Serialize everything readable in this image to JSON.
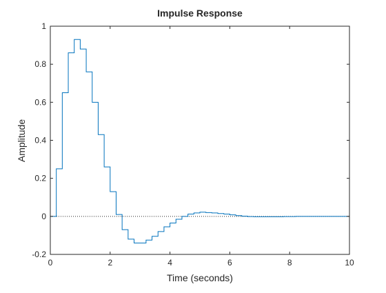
{
  "chart_data": {
    "type": "line",
    "style": "stairs",
    "title": "Impulse Response",
    "xlabel": "Time (seconds)",
    "ylabel": "Amplitude",
    "xlim": [
      0,
      10
    ],
    "ylim": [
      -0.2,
      1
    ],
    "xticks": [
      0,
      2,
      4,
      6,
      8,
      10
    ],
    "yticks": [
      -0.2,
      0,
      0.2,
      0.4,
      0.6,
      0.8,
      1
    ],
    "xtick_labels": [
      "0",
      "2",
      "4",
      "6",
      "8",
      "10"
    ],
    "ytick_labels": [
      "-0.2",
      "0",
      "0.2",
      "0.4",
      "0.6",
      "0.8",
      "1"
    ],
    "zero_line": true,
    "grid": false,
    "series": [
      {
        "color": "#0072bd",
        "x": [
          0,
          0.2,
          0.4,
          0.6,
          0.8,
          1.0,
          1.2,
          1.4,
          1.6,
          1.8,
          2.0,
          2.2,
          2.4,
          2.6,
          2.8,
          3.0,
          3.2,
          3.4,
          3.6,
          3.8,
          4.0,
          4.2,
          4.4,
          4.6,
          4.8,
          5.0,
          5.2,
          5.4,
          5.6,
          5.8,
          6.0,
          6.2,
          6.4,
          6.6,
          6.8,
          7.0,
          7.2,
          7.4,
          7.6,
          7.8,
          8.0,
          8.2,
          8.4,
          8.6,
          8.8,
          9.0,
          9.2,
          9.4,
          9.6,
          9.8
        ],
        "y": [
          0,
          0.25,
          0.65,
          0.86,
          0.93,
          0.88,
          0.76,
          0.6,
          0.43,
          0.26,
          0.13,
          0.01,
          -0.07,
          -0.12,
          -0.14,
          -0.14,
          -0.125,
          -0.105,
          -0.08,
          -0.055,
          -0.035,
          -0.015,
          0.0,
          0.012,
          0.018,
          0.022,
          0.02,
          0.018,
          0.015,
          0.012,
          0.008,
          0.004,
          0.001,
          -0.001,
          -0.002,
          -0.002,
          -0.002,
          -0.002,
          -0.002,
          -0.001,
          -0.001,
          0.0,
          0.0,
          0.0,
          0.0,
          0.0,
          0.0,
          0.0,
          0.0,
          0.0
        ]
      }
    ]
  }
}
